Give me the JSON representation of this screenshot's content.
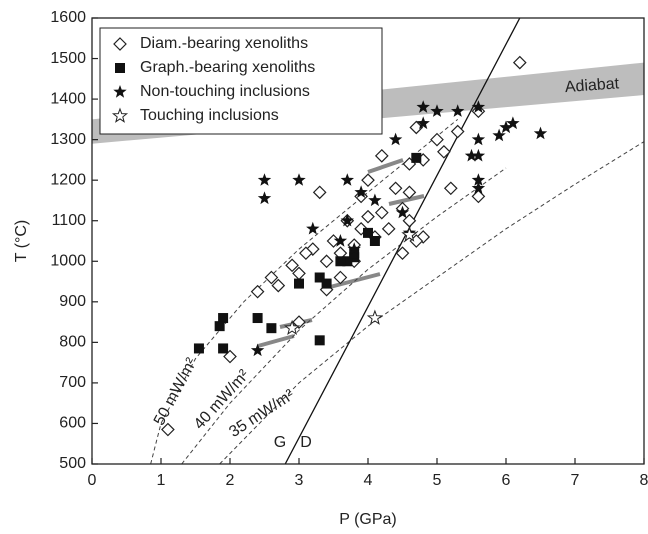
{
  "chart_data": {
    "type": "scatter",
    "xlabel": "P (GPa)",
    "ylabel": "T (°C)",
    "xlim": [
      0,
      8
    ],
    "ylim": [
      500,
      1600
    ],
    "xticks": [
      0,
      1,
      2,
      3,
      4,
      5,
      6,
      7,
      8
    ],
    "yticks": [
      500,
      600,
      700,
      800,
      900,
      1000,
      1100,
      1200,
      1300,
      1400,
      1500,
      1600
    ],
    "series": [
      {
        "name": "Diam.-bearing xenoliths",
        "marker": "diamond",
        "color": "#222222",
        "x": [
          6.2,
          4.2,
          4.7,
          5.3,
          5.6,
          5.0,
          5.1,
          4.8,
          4.6,
          5.2,
          5.6,
          4.6,
          4.4,
          4.0,
          3.9,
          3.3,
          4.5,
          4.2,
          4.0,
          3.7,
          3.9,
          4.1,
          3.8,
          3.6,
          3.5,
          3.4,
          3.2,
          3.1,
          2.9,
          3.0,
          2.6,
          2.7,
          2.4,
          3.6,
          3.4,
          4.8,
          4.7,
          4.5,
          3.0,
          2.0,
          1.1,
          4.6,
          4.3,
          3.8
        ],
        "values": [
          1490,
          1260,
          1330,
          1320,
          1370,
          1300,
          1270,
          1250,
          1240,
          1180,
          1160,
          1170,
          1180,
          1200,
          1160,
          1170,
          1130,
          1120,
          1110,
          1100,
          1080,
          1060,
          1040,
          1020,
          1050,
          1000,
          1030,
          1020,
          990,
          970,
          960,
          940,
          925,
          960,
          930,
          1060,
          1050,
          1020,
          850,
          765,
          585,
          1100,
          1080,
          1000
        ]
      },
      {
        "name": "Graph.-bearing xenoliths",
        "marker": "square",
        "color": "#111111",
        "x": [
          4.7,
          4.0,
          4.1,
          3.8,
          3.7,
          3.6,
          3.3,
          3.4,
          3.0,
          2.4,
          2.6,
          1.9,
          1.85,
          1.55,
          1.9,
          3.3,
          3.8
        ],
        "values": [
          1255,
          1070,
          1050,
          1010,
          1000,
          1000,
          960,
          945,
          945,
          860,
          835,
          860,
          840,
          785,
          785,
          805,
          1020
        ]
      },
      {
        "name": "Non-touching inclusions",
        "marker": "star",
        "color": "#111111",
        "x": [
          4.8,
          5.0,
          5.3,
          5.6,
          4.8,
          6.0,
          6.1,
          6.5,
          5.9,
          4.4,
          5.6,
          5.5,
          5.6,
          2.5,
          3.0,
          3.7,
          5.6,
          2.5,
          3.9,
          4.1,
          5.6,
          3.7,
          4.5,
          4.6,
          3.6,
          3.2,
          2.4,
          3.8
        ],
        "values": [
          1380,
          1370,
          1370,
          1380,
          1340,
          1330,
          1340,
          1315,
          1310,
          1300,
          1300,
          1260,
          1260,
          1200,
          1200,
          1200,
          1200,
          1155,
          1170,
          1150,
          1180,
          1100,
          1120,
          1070,
          1050,
          1080,
          780,
          1030
        ]
      },
      {
        "name": "Touching inclusions",
        "marker": "open-star",
        "color": "#222222",
        "x": [
          4.1,
          2.9,
          4.6
        ],
        "values": [
          860,
          835,
          1065
        ]
      }
    ],
    "curves": [
      {
        "label": "50 mW/m²",
        "x": [
          0.85,
          1.0,
          1.5,
          2.2,
          3.0,
          4.0,
          5.3
        ],
        "values": [
          500,
          600,
          760,
          900,
          1030,
          1170,
          1350
        ]
      },
      {
        "label": "40 mW/m²",
        "x": [
          1.3,
          2.0,
          3.0,
          4.0,
          5.0,
          6.0
        ],
        "values": [
          500,
          650,
          830,
          980,
          1110,
          1230
        ]
      },
      {
        "label": "35 mW/m²",
        "x": [
          1.85,
          3.0,
          4.0,
          5.0,
          6.0,
          7.0,
          8.0
        ],
        "values": [
          500,
          700,
          840,
          960,
          1080,
          1190,
          1295
        ]
      }
    ],
    "gd_line": {
      "x": [
        2.8,
        6.2
      ],
      "values": [
        500,
        1600
      ],
      "labels": [
        "G",
        "D"
      ]
    },
    "adiabat": {
      "label": "Adiabat",
      "x": [
        0,
        8
      ],
      "lower": [
        1290,
        1410
      ],
      "upper": [
        1350,
        1490
      ]
    },
    "legend": "upper left"
  }
}
